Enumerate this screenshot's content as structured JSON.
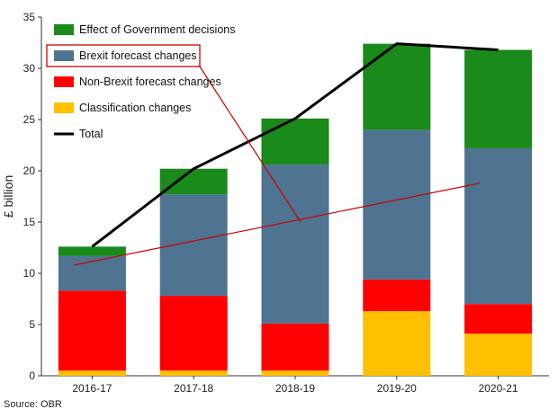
{
  "chart_data": {
    "type": "bar",
    "stacked": true,
    "title": "",
    "xlabel": "",
    "ylabel": "£ billion",
    "ylim": [
      0,
      35
    ],
    "yticks": [
      0,
      5,
      10,
      15,
      20,
      25,
      30,
      35
    ],
    "categories": [
      "2016-17",
      "2017-18",
      "2018-19",
      "2019-20",
      "2020-21"
    ],
    "series": [
      {
        "name": "Classification changes",
        "color": "#ffc000",
        "values": [
          0.5,
          0.5,
          0.5,
          6.3,
          4.1
        ]
      },
      {
        "name": "Non-Brexit forecast changes",
        "color": "#ff0000",
        "values": [
          7.8,
          7.3,
          4.6,
          3.1,
          2.9
        ]
      },
      {
        "name": "Brexit forecast changes",
        "color": "#4f7491",
        "values": [
          3.4,
          9.9,
          15.5,
          14.6,
          15.2
        ]
      },
      {
        "name": "Effect of Government decisions",
        "color": "#1a8a1a",
        "values": [
          0.9,
          2.5,
          4.5,
          8.4,
          9.6
        ]
      }
    ],
    "line_series": {
      "name": "Total",
      "color": "#000000",
      "values": [
        12.6,
        20.2,
        25.1,
        32.4,
        31.8
      ]
    },
    "annotation_line": {
      "from": {
        "category": "2016-17",
        "y": 10.8
      },
      "to": {
        "category": "2020-21",
        "y": 18.8
      },
      "color": "#cc0000"
    },
    "legend": {
      "position": "top-left",
      "order": [
        "Effect of Government decisions",
        "Brexit forecast changes",
        "Non-Brexit forecast changes",
        "Classification changes",
        "Total"
      ],
      "highlighted": "Brexit forecast changes"
    },
    "source": "Source: OBR"
  }
}
